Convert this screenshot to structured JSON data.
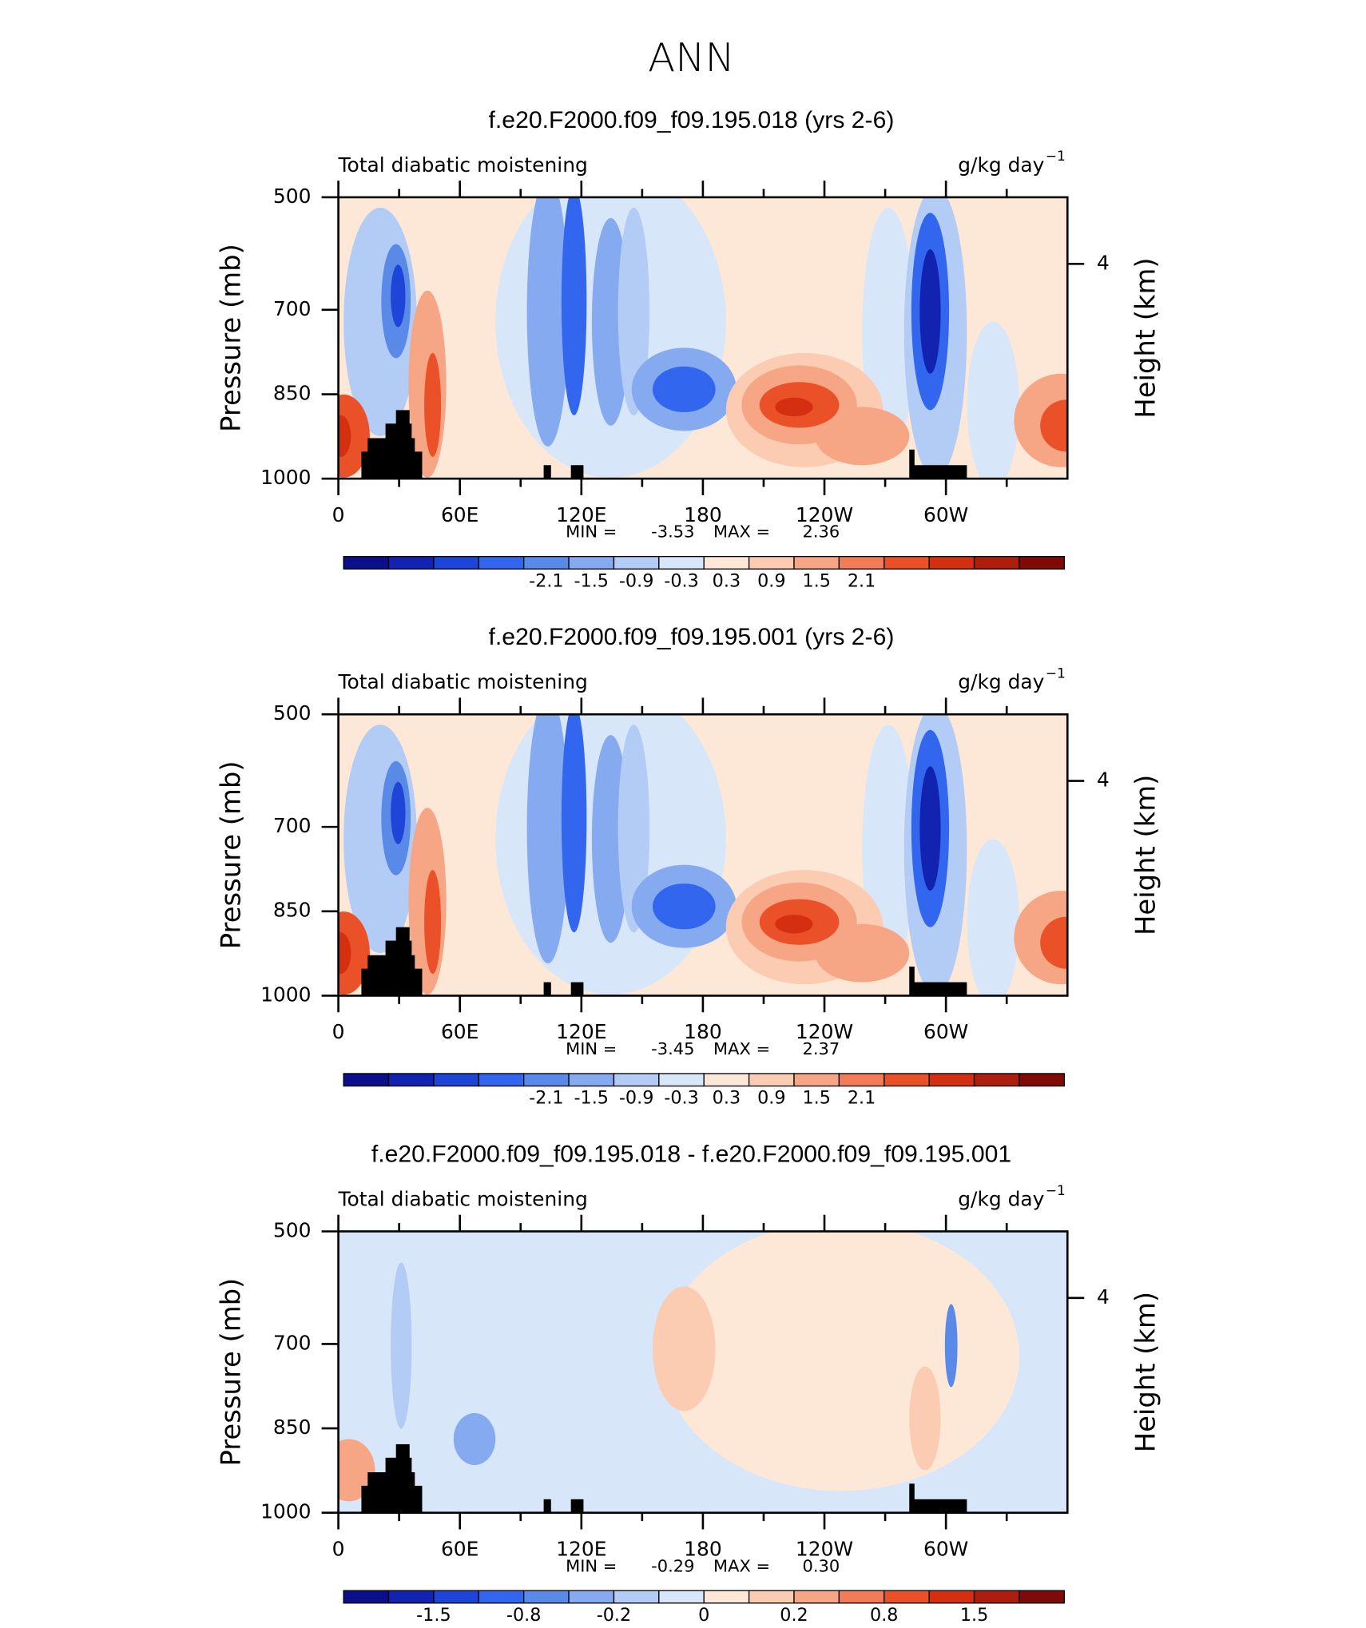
{
  "title": "ANN",
  "chart_data": [
    {
      "type": "contour",
      "title": "f.e20.F2000.f09_f09.195.018 (yrs 2-6)",
      "long_name": "Total diabatic moistening",
      "units": "g/kg day",
      "units_exponent": "−1",
      "ylabel": "Pressure (mb)",
      "y2label": "Height (km)",
      "xlim": [
        0,
        360
      ],
      "xticks": [
        0,
        {
          "value": 60,
          "label": "60E"
        },
        {
          "value": 120,
          "label": "120E"
        },
        180,
        {
          "value": 240,
          "label": "120W"
        },
        {
          "value": 300,
          "label": "60W"
        }
      ],
      "xminorticks": [
        30,
        90,
        150,
        210,
        270,
        330
      ],
      "ylim": [
        1000,
        500
      ],
      "yticks": [
        500,
        700,
        850,
        1000
      ],
      "y2lim": [
        0,
        5.24
      ],
      "y2ticks": [
        4
      ],
      "min_label": "MIN =",
      "min": -3.53,
      "max_label": "MAX =",
      "max": 2.36,
      "colorbar": {
        "colors": [
          "#0b0f8c",
          "#1123b0",
          "#1d46d8",
          "#3366ee",
          "#5a8ae8",
          "#86aaf0",
          "#b3ccf5",
          "#d8e6fa",
          "#fde8d8",
          "#fbcbb2",
          "#f6a585",
          "#f27c57",
          "#ea5128",
          "#d42f10",
          "#ae1e0d",
          "#800a06"
        ],
        "ticks": [
          -2.1,
          -1.5,
          -0.9,
          -0.3,
          0.3,
          0.9,
          1.5,
          2.1
        ]
      }
    },
    {
      "type": "contour",
      "title": "f.e20.F2000.f09_f09.195.001 (yrs 2-6)",
      "long_name": "Total diabatic moistening",
      "units": "g/kg day",
      "units_exponent": "−1",
      "ylabel": "Pressure (mb)",
      "y2label": "Height (km)",
      "xlim": [
        0,
        360
      ],
      "xticks": [
        0,
        {
          "value": 60,
          "label": "60E"
        },
        {
          "value": 120,
          "label": "120E"
        },
        180,
        {
          "value": 240,
          "label": "120W"
        },
        {
          "value": 300,
          "label": "60W"
        }
      ],
      "xminorticks": [
        30,
        90,
        150,
        210,
        270,
        330
      ],
      "ylim": [
        1000,
        500
      ],
      "yticks": [
        500,
        700,
        850,
        1000
      ],
      "y2lim": [
        0,
        5.24
      ],
      "y2ticks": [
        4
      ],
      "min_label": "MIN =",
      "min": -3.45,
      "max_label": "MAX =",
      "max": 2.37,
      "colorbar": {
        "colors": [
          "#0b0f8c",
          "#1123b0",
          "#1d46d8",
          "#3366ee",
          "#5a8ae8",
          "#86aaf0",
          "#b3ccf5",
          "#d8e6fa",
          "#fde8d8",
          "#fbcbb2",
          "#f6a585",
          "#f27c57",
          "#ea5128",
          "#d42f10",
          "#ae1e0d",
          "#800a06"
        ],
        "ticks": [
          -2.1,
          -1.5,
          -0.9,
          -0.3,
          0.3,
          0.9,
          1.5,
          2.1
        ]
      }
    },
    {
      "type": "contour",
      "title": "f.e20.F2000.f09_f09.195.018 - f.e20.F2000.f09_f09.195.001",
      "long_name": "Total diabatic moistening",
      "units": "g/kg day",
      "units_exponent": "−1",
      "ylabel": "Pressure (mb)",
      "y2label": "Height (km)",
      "xlim": [
        0,
        360
      ],
      "xticks": [
        0,
        {
          "value": 60,
          "label": "60E"
        },
        {
          "value": 120,
          "label": "120E"
        },
        180,
        {
          "value": 240,
          "label": "120W"
        },
        {
          "value": 300,
          "label": "60W"
        }
      ],
      "xminorticks": [
        30,
        90,
        150,
        210,
        270,
        330
      ],
      "ylim": [
        1000,
        500
      ],
      "yticks": [
        500,
        700,
        850,
        1000
      ],
      "y2lim": [
        0,
        5.24
      ],
      "y2ticks": [
        4
      ],
      "min_label": "MIN =",
      "min": -0.29,
      "max_label": "MAX =",
      "max": {
        "value": 0.3,
        "label": "0.30"
      },
      "colorbar": {
        "colors": [
          "#0b0f8c",
          "#1123b0",
          "#1d46d8",
          "#3366ee",
          "#5a8ae8",
          "#86aaf0",
          "#b3ccf5",
          "#d8e6fa",
          "#fde8d8",
          "#fbcbb2",
          "#f6a585",
          "#f27c57",
          "#ea5128",
          "#d42f10",
          "#ae1e0d",
          "#800a06"
        ],
        "ticks": [
          -1.5,
          -0.8,
          -0.2,
          0,
          0.2,
          0.8,
          1.5
        ]
      }
    }
  ]
}
